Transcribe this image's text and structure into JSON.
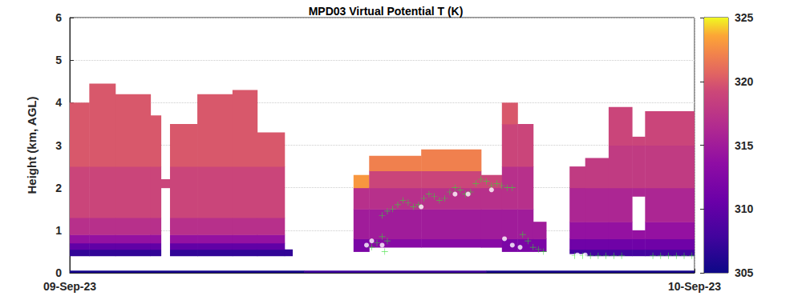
{
  "chart_data": {
    "type": "heatmap",
    "title": "MPD03 Virtual Potential T (K)",
    "y_label": "Height (km, AGL)",
    "xlim": [
      0,
      24
    ],
    "xticks": [
      {
        "value": 0,
        "label": "09-Sep-23"
      },
      {
        "value": 24,
        "label": "10-Sep-23"
      }
    ],
    "ylim": [
      0,
      6
    ],
    "yticks": [
      0,
      1,
      2,
      3,
      4,
      5,
      6
    ],
    "grid": true,
    "clim": [
      305,
      325
    ],
    "cticks": [
      305,
      310,
      315,
      320,
      325
    ],
    "cells": [
      [
        0,
        9,
        0,
        0.05,
        305.5
      ],
      [
        9,
        16,
        0,
        0.05,
        307.5
      ],
      [
        16,
        24,
        0,
        0.05,
        305.5
      ],
      [
        0,
        0.75,
        0.4,
        0.55,
        307
      ],
      [
        0,
        0.75,
        0.55,
        0.7,
        310
      ],
      [
        0,
        0.75,
        0.7,
        0.9,
        314
      ],
      [
        0,
        0.75,
        0.9,
        1.3,
        317
      ],
      [
        0,
        0.75,
        1.3,
        2.5,
        319
      ],
      [
        0,
        0.75,
        2.5,
        4.0,
        320
      ],
      [
        0.75,
        1.75,
        0.4,
        0.55,
        307
      ],
      [
        0.75,
        1.75,
        0.55,
        0.7,
        310
      ],
      [
        0.75,
        1.75,
        0.7,
        0.9,
        314
      ],
      [
        0.75,
        1.75,
        0.9,
        1.3,
        317
      ],
      [
        0.75,
        1.75,
        1.3,
        2.5,
        319
      ],
      [
        0.75,
        1.75,
        2.5,
        4.45,
        320
      ],
      [
        1.75,
        3.1,
        0.4,
        0.55,
        307
      ],
      [
        1.75,
        3.1,
        0.55,
        0.7,
        310
      ],
      [
        1.75,
        3.1,
        0.7,
        0.9,
        314
      ],
      [
        1.75,
        3.1,
        0.9,
        1.3,
        317
      ],
      [
        1.75,
        3.1,
        1.3,
        2.5,
        319
      ],
      [
        1.75,
        3.1,
        2.5,
        4.2,
        320
      ],
      [
        3.1,
        3.5,
        0.4,
        0.55,
        307
      ],
      [
        3.1,
        3.5,
        0.55,
        0.7,
        310
      ],
      [
        3.1,
        3.5,
        0.7,
        0.9,
        314
      ],
      [
        3.1,
        3.5,
        0.9,
        1.3,
        317
      ],
      [
        3.1,
        3.5,
        1.3,
        2.5,
        319
      ],
      [
        3.1,
        3.5,
        2.5,
        3.7,
        320
      ],
      [
        3.5,
        3.85,
        2.0,
        2.2,
        319
      ],
      [
        3.85,
        4.9,
        0.4,
        0.55,
        307
      ],
      [
        3.85,
        4.9,
        0.55,
        0.7,
        310
      ],
      [
        3.85,
        4.9,
        0.7,
        0.9,
        314
      ],
      [
        3.85,
        4.9,
        0.9,
        1.3,
        317
      ],
      [
        3.85,
        4.9,
        1.3,
        2.5,
        319
      ],
      [
        3.85,
        4.9,
        2.5,
        3.5,
        320
      ],
      [
        4.9,
        6.25,
        0.4,
        0.55,
        307
      ],
      [
        4.9,
        6.25,
        0.55,
        0.7,
        310
      ],
      [
        4.9,
        6.25,
        0.7,
        0.9,
        314
      ],
      [
        4.9,
        6.25,
        0.9,
        1.3,
        317
      ],
      [
        4.9,
        6.25,
        1.3,
        2.5,
        319
      ],
      [
        4.9,
        6.25,
        2.5,
        4.2,
        320
      ],
      [
        6.25,
        7.2,
        0.4,
        0.55,
        307
      ],
      [
        6.25,
        7.2,
        0.55,
        0.7,
        310
      ],
      [
        6.25,
        7.2,
        0.7,
        0.9,
        314
      ],
      [
        6.25,
        7.2,
        0.9,
        1.3,
        317
      ],
      [
        6.25,
        7.2,
        1.3,
        2.5,
        319
      ],
      [
        6.25,
        7.2,
        2.5,
        4.3,
        320
      ],
      [
        7.2,
        8.25,
        0.4,
        0.55,
        307
      ],
      [
        7.2,
        8.25,
        0.55,
        0.7,
        310
      ],
      [
        7.2,
        8.25,
        0.7,
        0.9,
        314
      ],
      [
        7.2,
        8.25,
        0.9,
        1.3,
        317
      ],
      [
        7.2,
        8.25,
        1.3,
        2.5,
        319
      ],
      [
        7.2,
        8.25,
        2.5,
        3.3,
        320
      ],
      [
        8.25,
        8.55,
        0.4,
        0.55,
        307
      ],
      [
        10.9,
        11.5,
        0.5,
        0.8,
        312
      ],
      [
        10.9,
        11.5,
        0.8,
        1.5,
        315
      ],
      [
        10.9,
        11.5,
        1.5,
        2.0,
        317
      ],
      [
        10.9,
        11.5,
        2.0,
        2.3,
        323
      ],
      [
        11.5,
        13.5,
        0.6,
        0.8,
        313
      ],
      [
        11.5,
        13.5,
        0.8,
        1.5,
        315
      ],
      [
        11.5,
        13.5,
        1.5,
        2.0,
        317
      ],
      [
        11.5,
        13.5,
        2.0,
        2.4,
        319
      ],
      [
        11.5,
        13.5,
        2.4,
        2.75,
        322
      ],
      [
        13.5,
        15.8,
        0.6,
        0.8,
        313
      ],
      [
        13.5,
        15.8,
        0.8,
        1.5,
        315
      ],
      [
        13.5,
        15.8,
        1.5,
        2.0,
        317
      ],
      [
        13.5,
        15.8,
        2.0,
        2.4,
        319
      ],
      [
        13.5,
        15.8,
        2.4,
        2.9,
        322
      ],
      [
        15.8,
        16.6,
        0.6,
        0.8,
        313
      ],
      [
        15.8,
        16.6,
        0.8,
        1.5,
        315
      ],
      [
        15.8,
        16.6,
        1.5,
        2.0,
        317
      ],
      [
        15.8,
        16.6,
        2.0,
        2.3,
        319
      ],
      [
        16.6,
        17.2,
        0.5,
        0.8,
        312
      ],
      [
        16.6,
        17.2,
        0.8,
        1.5,
        315
      ],
      [
        16.6,
        17.2,
        1.5,
        2.5,
        317
      ],
      [
        16.6,
        17.2,
        2.5,
        3.5,
        319
      ],
      [
        16.6,
        17.2,
        3.5,
        4.0,
        320
      ],
      [
        17.2,
        17.8,
        0.5,
        0.8,
        312
      ],
      [
        17.2,
        17.8,
        0.8,
        1.5,
        315
      ],
      [
        17.2,
        17.8,
        1.5,
        2.5,
        317
      ],
      [
        17.2,
        17.8,
        2.5,
        3.5,
        319
      ],
      [
        17.8,
        18.3,
        0.5,
        0.8,
        312
      ],
      [
        17.8,
        18.3,
        0.8,
        1.2,
        315
      ],
      [
        19.2,
        19.8,
        0.45,
        0.55,
        308
      ],
      [
        19.2,
        19.8,
        0.55,
        0.8,
        311
      ],
      [
        19.2,
        19.8,
        0.8,
        1.2,
        314
      ],
      [
        19.2,
        19.8,
        1.2,
        2.0,
        316
      ],
      [
        19.2,
        19.8,
        2.0,
        2.5,
        318
      ],
      [
        19.8,
        20.7,
        0.4,
        0.55,
        308
      ],
      [
        19.8,
        20.7,
        0.55,
        0.8,
        311
      ],
      [
        19.8,
        20.7,
        0.8,
        1.2,
        314
      ],
      [
        19.8,
        20.7,
        1.2,
        2.0,
        316
      ],
      [
        19.8,
        20.7,
        2.0,
        2.7,
        318
      ],
      [
        20.7,
        21.6,
        0.4,
        0.55,
        308
      ],
      [
        20.7,
        21.6,
        0.55,
        0.8,
        311
      ],
      [
        20.7,
        21.6,
        0.8,
        1.2,
        314
      ],
      [
        20.7,
        21.6,
        1.2,
        2.0,
        316
      ],
      [
        20.7,
        21.6,
        2.0,
        3.0,
        318
      ],
      [
        20.7,
        21.6,
        3.0,
        3.9,
        319
      ],
      [
        21.6,
        22.1,
        0.4,
        0.55,
        308
      ],
      [
        21.6,
        22.1,
        0.55,
        0.8,
        311
      ],
      [
        21.6,
        22.1,
        0.8,
        1.0,
        314
      ],
      [
        21.6,
        22.1,
        1.8,
        2.0,
        316
      ],
      [
        21.6,
        22.1,
        2.0,
        3.0,
        318
      ],
      [
        21.6,
        22.1,
        3.0,
        3.2,
        319
      ],
      [
        22.1,
        24,
        0.4,
        0.55,
        308
      ],
      [
        22.1,
        24,
        0.55,
        0.8,
        311
      ],
      [
        22.1,
        24,
        0.8,
        1.2,
        314
      ],
      [
        22.1,
        24,
        1.2,
        2.0,
        316
      ],
      [
        22.1,
        24,
        2.0,
        3.0,
        318
      ],
      [
        22.1,
        24,
        3.0,
        3.8,
        319
      ]
    ],
    "series": [
      {
        "type": "scatter",
        "marker": "plus",
        "color": "#33dd33",
        "x": [
          12.0,
          12.2,
          12.4,
          12.6,
          12.8,
          13.0,
          13.2,
          13.4,
          13.6,
          13.8,
          14.0,
          14.2,
          14.4,
          14.6,
          14.8,
          15.0,
          15.2,
          15.4,
          15.6,
          15.8,
          16.0,
          16.2,
          16.4,
          16.6,
          16.8,
          17.0,
          11.6,
          11.8,
          12.0,
          12.2,
          12.1,
          17.4,
          17.6,
          17.8,
          18.0,
          18.2,
          19.4,
          19.7,
          20.0,
          20.3,
          20.6,
          20.9,
          21.2,
          22.4,
          22.7,
          23.0,
          23.3,
          23.6,
          23.9
        ],
        "y": [
          1.35,
          1.45,
          1.5,
          1.6,
          1.7,
          1.65,
          1.55,
          1.6,
          1.75,
          1.85,
          1.8,
          1.7,
          1.75,
          1.9,
          2.0,
          1.95,
          1.85,
          1.9,
          2.1,
          2.2,
          2.15,
          2.05,
          2.1,
          2.05,
          2.0,
          2.0,
          0.6,
          0.7,
          0.85,
          0.75,
          0.5,
          0.9,
          0.75,
          0.6,
          0.55,
          0.5,
          0.4,
          0.4,
          0.4,
          0.4,
          0.4,
          0.4,
          0.4,
          0.4,
          0.4,
          0.4,
          0.4,
          0.4,
          0.4
        ]
      },
      {
        "type": "scatter",
        "marker": "circle",
        "color": "#33dd33",
        "x": [
          11.4,
          11.6,
          12.0,
          13.5,
          14.8,
          15.3,
          16.2,
          16.7,
          17.0,
          17.3,
          19.5,
          19.8
        ],
        "y": [
          0.65,
          0.75,
          0.65,
          1.55,
          1.85,
          1.85,
          1.95,
          0.8,
          0.65,
          0.6,
          0.42,
          0.42
        ]
      }
    ]
  }
}
